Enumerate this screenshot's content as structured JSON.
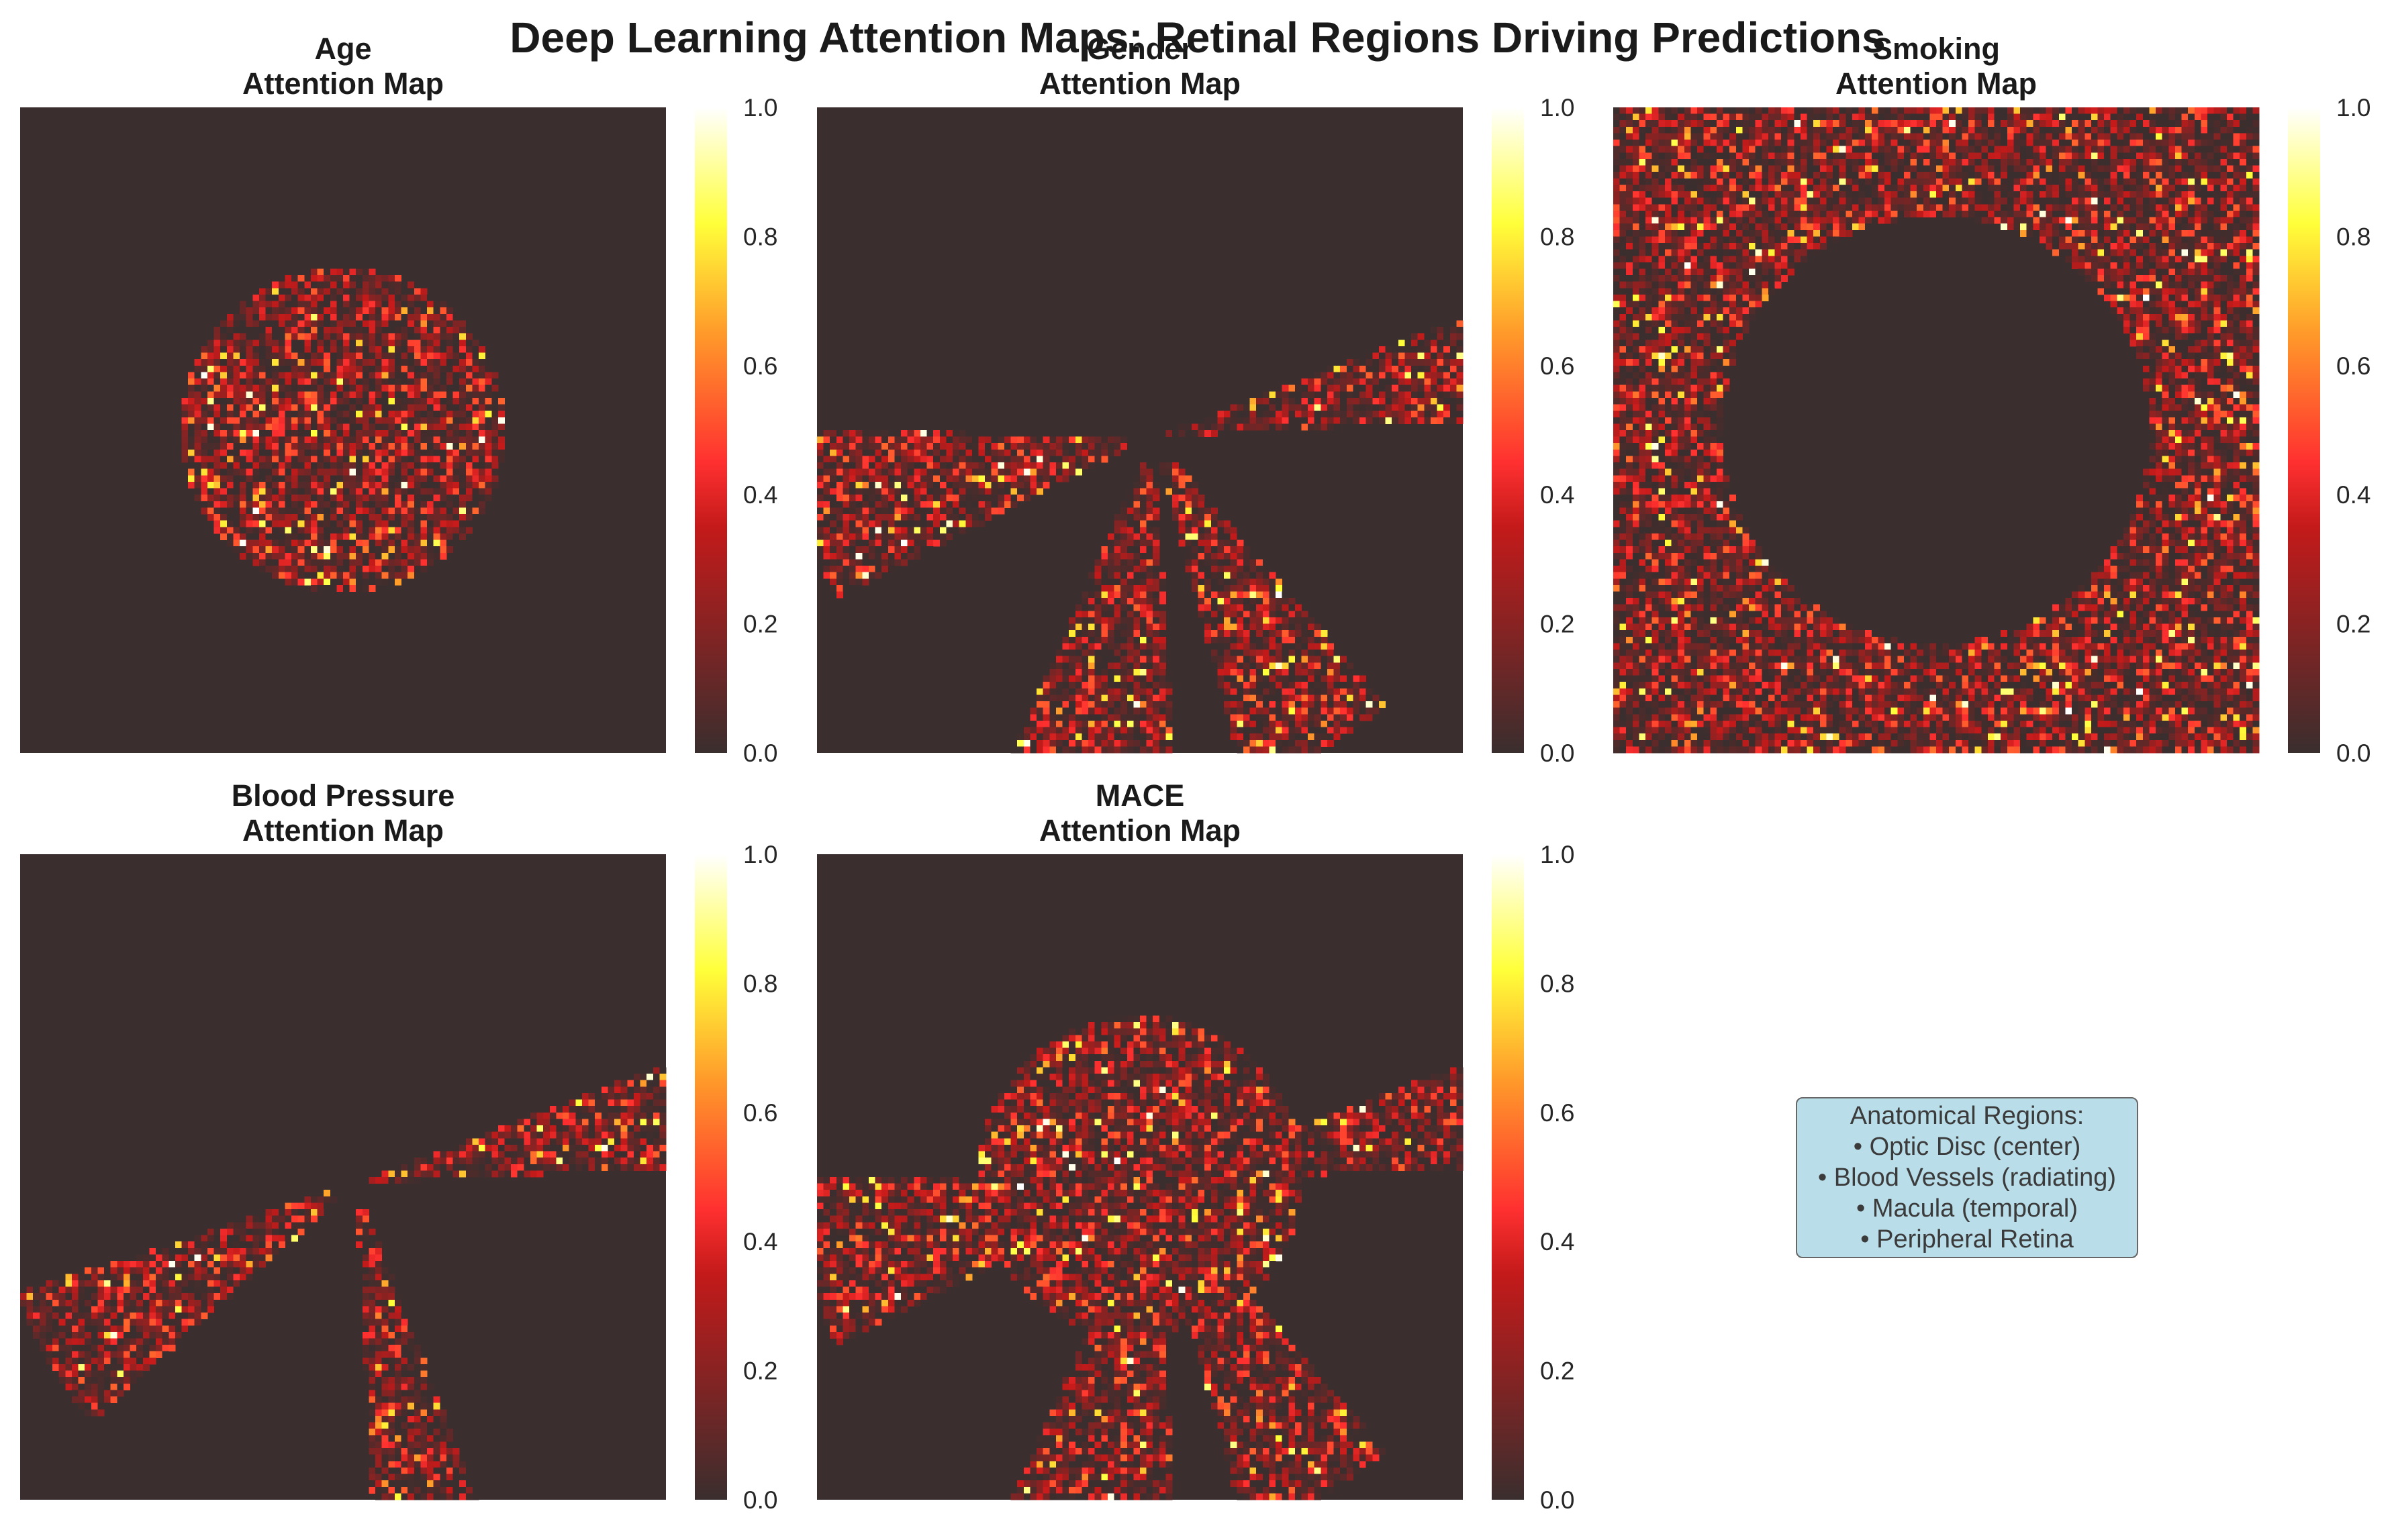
{
  "figure": {
    "title": "Deep Learning Attention Maps: Retinal Regions Driving Predictions",
    "colormap": "hot",
    "background_color": "#3a2e2e",
    "annotation": {
      "lines": [
        "Anatomical Regions:",
        "• Optic Disc (center)",
        "• Blood Vessels (radiating)",
        "• Macula (temporal)",
        "• Peripheral Retina"
      ],
      "box_color": "#add8e6"
    }
  },
  "chart_data": [
    {
      "type": "heatmap",
      "title": "Age\nAttention Map",
      "grid": [
        100,
        100
      ],
      "colorbar": {
        "range": [
          0,
          1
        ],
        "ticks": [
          "0.0",
          "0.2",
          "0.4",
          "0.6",
          "0.8",
          "1.0"
        ]
      },
      "regions": [
        "optic disc (center)"
      ],
      "value_range": [
        0,
        1
      ]
    },
    {
      "type": "heatmap",
      "title": "Gender\nAttention Map",
      "grid": [
        100,
        100
      ],
      "colorbar": {
        "range": [
          0,
          1
        ],
        "ticks": [
          "0.0",
          "0.2",
          "0.4",
          "0.6",
          "0.8",
          "1.0"
        ]
      },
      "regions": [
        "blood vessels (radiating)"
      ],
      "value_range": [
        0,
        1
      ]
    },
    {
      "type": "heatmap",
      "title": "Smoking\nAttention Map",
      "grid": [
        100,
        100
      ],
      "colorbar": {
        "range": [
          0,
          1
        ],
        "ticks": [
          "0.0",
          "0.2",
          "0.4",
          "0.6",
          "0.8",
          "1.0"
        ]
      },
      "regions": [
        "peripheral retina"
      ],
      "value_range": [
        0,
        1
      ]
    },
    {
      "type": "heatmap",
      "title": "Blood Pressure\nAttention Map",
      "grid": [
        100,
        100
      ],
      "colorbar": {
        "range": [
          0,
          1
        ],
        "ticks": [
          "0.0",
          "0.2",
          "0.4",
          "0.6",
          "0.8",
          "1.0"
        ]
      },
      "regions": [
        "blood vessels (radiating)"
      ],
      "value_range": [
        0,
        1
      ]
    },
    {
      "type": "heatmap",
      "title": "MACE\nAttention Map",
      "grid": [
        100,
        100
      ],
      "colorbar": {
        "range": [
          0,
          1
        ],
        "ticks": [
          "0.0",
          "0.2",
          "0.4",
          "0.6",
          "0.8",
          "1.0"
        ]
      },
      "regions": [
        "optic disc (center)",
        "blood vessels (radiating)"
      ],
      "value_range": [
        0,
        1
      ]
    }
  ]
}
